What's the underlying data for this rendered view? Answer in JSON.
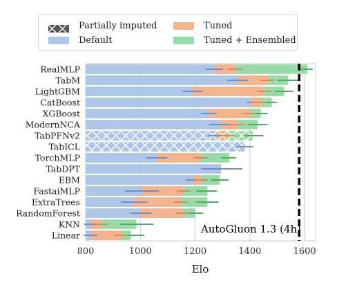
{
  "legend": {
    "partial": "Partially imputed",
    "default": "Default",
    "tuned": "Tuned",
    "tuned_ens": "Tuned + Ensembled"
  },
  "colors": {
    "default": "#aec7e8",
    "tuned": "#f4b48f",
    "tuned_ens": "#98dba8",
    "default_err": "#6f8fc7",
    "tuned_err": "#d98a5a",
    "ens_err": "#4fae5e",
    "reference": "#000000",
    "grid": "#cccccc"
  },
  "chart_data": {
    "type": "bar",
    "orientation": "horizontal",
    "xlabel": "Elo",
    "xlim": [
      800,
      1640
    ],
    "xticks": [
      800,
      1000,
      1200,
      1400,
      1600
    ],
    "grid": true,
    "legend_position": "top",
    "reference": {
      "value": 1580,
      "label": "AutoGluon 1.3 (4h)"
    },
    "categories": [
      "RealMLP",
      "TabM",
      "LightGBM",
      "CatBoost",
      "XGBoost",
      "ModernNCA",
      "TabPFNv2",
      "TabICL",
      "TorchMLP",
      "TabDPT",
      "EBM",
      "FastaiMLP",
      "ExtraTrees",
      "RandomForest",
      "KNN",
      "Linear"
    ],
    "partially_imputed": [
      "TabPFNv2",
      "TabICL"
    ],
    "series": [
      {
        "name": "Default",
        "values": [
          1272,
          1355,
          1190,
          1400,
          1250,
          1292,
          1278,
          1382,
          1060,
          1295,
          1195,
          1005,
          975,
          1000,
          818,
          818
        ],
        "ci": [
          [
            1238,
            1302
          ],
          [
            1316,
            1392
          ],
          [
            1153,
            1228
          ],
          [
            1388,
            1414
          ],
          [
            1220,
            1280
          ],
          [
            1252,
            1330
          ],
          [
            1248,
            1310
          ],
          [
            1352,
            1412
          ],
          [
            1022,
            1098
          ],
          [
            1222,
            1372
          ],
          [
            1166,
            1226
          ],
          [
            944,
            1068
          ],
          [
            930,
            1025
          ],
          [
            962,
            1040
          ],
          [
            795,
            845
          ],
          [
            795,
            843
          ]
        ]
      },
      {
        "name": "Tuned",
        "values": [
          1345,
          1465,
          1452,
          1440,
          1400,
          1355,
          1320,
          null,
          1220,
          null,
          1222,
          1158,
          1148,
          1155,
          858,
          932
        ]
      },
      {
        "name": "Tuned + Ensembled",
        "values": [
          1610,
          1540,
          1525,
          1480,
          1440,
          1428,
          1410,
          null,
          1325,
          null,
          1290,
          1245,
          1245,
          1200,
          985,
          965
        ],
        "ci": [
          [
            1575,
            1630
          ],
          [
            1500,
            1585
          ],
          [
            1492,
            1558
          ],
          [
            1460,
            1500
          ],
          [
            1415,
            1465
          ],
          [
            1392,
            1465
          ],
          [
            1378,
            1450
          ],
          null,
          [
            1295,
            1350
          ],
          null,
          [
            1258,
            1322
          ],
          [
            1205,
            1280
          ],
          [
            1205,
            1285
          ],
          [
            1168,
            1230
          ],
          [
            925,
            1048
          ],
          [
            905,
            1015
          ]
        ]
      }
    ]
  }
}
